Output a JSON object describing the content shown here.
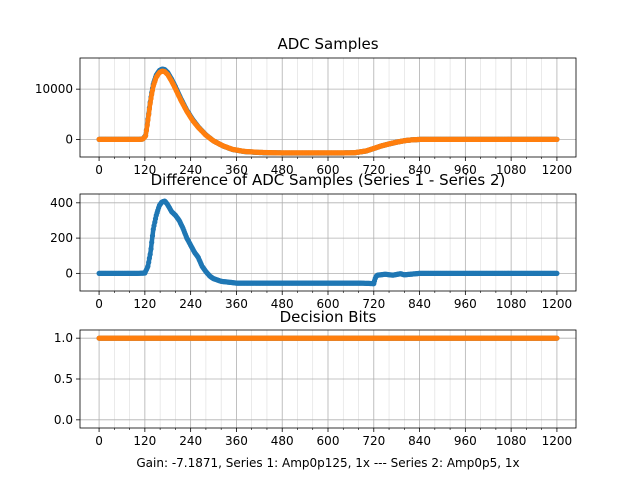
{
  "figure": {
    "footer": "Gain: -7.1871, Series 1: Amp0p125, 1x --- Series 2: Amp0p5, 1x"
  },
  "colors": {
    "series1": "#1f77b4",
    "series2": "#ff7f0e"
  },
  "chart_data": [
    {
      "type": "scatter",
      "title": "ADC Samples",
      "xlim": [
        -50,
        1250
      ],
      "ylim": [
        -3500,
        16200
      ],
      "xticks": [
        0,
        120,
        240,
        360,
        480,
        600,
        720,
        840,
        960,
        1080,
        1200
      ],
      "yticks": [
        0,
        10000
      ],
      "grid": true,
      "series": [
        {
          "color": "series1",
          "x": [
            0,
            90,
            105,
            115,
            122,
            128,
            135,
            142,
            150,
            158,
            165,
            172,
            180,
            190,
            200,
            215,
            230,
            245,
            260,
            280,
            300,
            325,
            350,
            380,
            420,
            480,
            560,
            640,
            670,
            700,
            720,
            740,
            760,
            780,
            800,
            820,
            840,
            900,
            1000,
            1100,
            1200
          ],
          "y": [
            0,
            0,
            5,
            100,
            800,
            4000,
            8000,
            11000,
            12800,
            13700,
            14000,
            13900,
            13300,
            12000,
            10500,
            8000,
            5800,
            4000,
            2500,
            900,
            -300,
            -1300,
            -2000,
            -2400,
            -2600,
            -2700,
            -2700,
            -2700,
            -2650,
            -2300,
            -1800,
            -1300,
            -900,
            -550,
            -250,
            -80,
            0,
            0,
            0,
            0,
            0
          ]
        },
        {
          "color": "series2",
          "x": [
            0,
            90,
            105,
            115,
            122,
            128,
            135,
            142,
            150,
            158,
            165,
            172,
            180,
            190,
            200,
            215,
            230,
            245,
            260,
            280,
            300,
            325,
            350,
            380,
            420,
            480,
            560,
            640,
            670,
            700,
            720,
            740,
            760,
            780,
            800,
            820,
            840,
            900,
            1000,
            1100,
            1200
          ],
          "y": [
            0,
            0,
            5,
            90,
            700,
            3800,
            7700,
            10600,
            12400,
            13300,
            13600,
            13500,
            12900,
            11600,
            10100,
            7700,
            5600,
            3800,
            2400,
            850,
            -300,
            -1280,
            -1980,
            -2380,
            -2580,
            -2680,
            -2680,
            -2680,
            -2640,
            -2290,
            -1790,
            -1290,
            -890,
            -545,
            -248,
            -79,
            0,
            0,
            0,
            0,
            0
          ]
        }
      ]
    },
    {
      "type": "scatter",
      "title": "Difference of ADC Samples (Series 1 - Series 2)",
      "xlim": [
        -50,
        1250
      ],
      "ylim": [
        -100,
        450
      ],
      "xticks": [
        0,
        120,
        240,
        360,
        480,
        600,
        720,
        840,
        960,
        1080,
        1200
      ],
      "yticks": [
        0,
        200,
        400
      ],
      "grid": true,
      "series": [
        {
          "color": "series1",
          "x": [
            0,
            60,
            100,
            120,
            128,
            135,
            142,
            150,
            158,
            165,
            172,
            178,
            185,
            190,
            200,
            210,
            220,
            230,
            240,
            250,
            260,
            270,
            280,
            290,
            300,
            320,
            340,
            360,
            400,
            500,
            600,
            680,
            720,
            725,
            730,
            750,
            770,
            790,
            800,
            840,
            900,
            1000,
            1100,
            1200
          ],
          "y": [
            0,
            0,
            0,
            2,
            40,
            120,
            250,
            330,
            385,
            405,
            410,
            395,
            370,
            350,
            330,
            300,
            255,
            200,
            160,
            120,
            90,
            40,
            10,
            -15,
            -30,
            -45,
            -50,
            -55,
            -55,
            -55,
            -55,
            -55,
            -58,
            -20,
            -10,
            -5,
            -10,
            -2,
            -8,
            0,
            0,
            0,
            0,
            0
          ]
        }
      ]
    },
    {
      "type": "scatter",
      "title": "Decision Bits",
      "xlim": [
        -50,
        1250
      ],
      "ylim": [
        -0.1,
        1.1
      ],
      "xticks": [
        0,
        120,
        240,
        360,
        480,
        600,
        720,
        840,
        960,
        1080,
        1200
      ],
      "yticks": [
        0.0,
        0.5,
        1.0
      ],
      "ytick_labels": [
        "0.0",
        "0.5",
        "1.0"
      ],
      "grid": true,
      "series": [
        {
          "color": "series1",
          "x": [
            0,
            1200
          ],
          "y": [
            1,
            1
          ]
        },
        {
          "color": "series2",
          "x": [
            0,
            1200
          ],
          "y": [
            1,
            1
          ]
        }
      ]
    }
  ]
}
